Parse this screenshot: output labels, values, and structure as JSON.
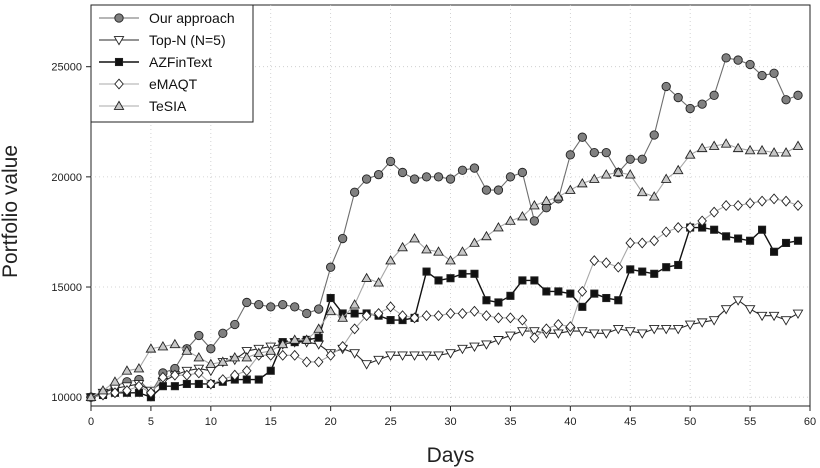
{
  "chart_data": {
    "type": "line",
    "xlabel": "Days",
    "ylabel": "Portfolio value",
    "xlim": [
      0,
      60
    ],
    "ylim": [
      9600,
      27800
    ],
    "xticks": [
      0,
      5,
      10,
      15,
      20,
      25,
      30,
      35,
      40,
      45,
      50,
      55,
      60
    ],
    "yticks": [
      10000,
      15000,
      20000,
      25000
    ],
    "grid": true,
    "legend_position": "top-left",
    "x": [
      0,
      1,
      2,
      3,
      4,
      5,
      6,
      7,
      8,
      9,
      10,
      11,
      12,
      13,
      14,
      15,
      16,
      17,
      18,
      19,
      20,
      21,
      22,
      23,
      24,
      25,
      26,
      27,
      28,
      29,
      30,
      31,
      32,
      33,
      34,
      35,
      36,
      37,
      38,
      39,
      40,
      41,
      42,
      43,
      44,
      45,
      46,
      47,
      48,
      49,
      50,
      51,
      52,
      53,
      54,
      55,
      56,
      57,
      58,
      59
    ],
    "series": [
      {
        "name": "Our approach",
        "marker": "circle",
        "color": "#808080",
        "values": [
          10000,
          10200,
          10500,
          10700,
          10800,
          10200,
          11100,
          11300,
          12200,
          12800,
          12200,
          12900,
          13300,
          14300,
          14200,
          14100,
          14200,
          14100,
          13800,
          14000,
          15900,
          17200,
          19300,
          19900,
          20100,
          20700,
          20200,
          19900,
          20000,
          20000,
          19900,
          20300,
          20400,
          19400,
          19400,
          20000,
          20200,
          18000,
          18600,
          19000,
          21000,
          21800,
          21100,
          21100,
          20200,
          20800,
          20800,
          21900,
          24100,
          23600,
          23100,
          23300,
          23700,
          25400,
          25300,
          25100,
          24600,
          24700,
          23500,
          23700
        ]
      },
      {
        "name": "Top-N (N=5)",
        "marker": "triangle-down",
        "color": "#ffffff",
        "values": [
          10000,
          10200,
          10400,
          10500,
          10600,
          10300,
          10700,
          11000,
          11200,
          11300,
          11200,
          11600,
          11700,
          12100,
          12200,
          12300,
          12400,
          12500,
          12500,
          12400,
          12000,
          12200,
          12000,
          11500,
          11700,
          11900,
          11900,
          11900,
          11900,
          11900,
          12000,
          12200,
          12300,
          12400,
          12600,
          12800,
          13000,
          13000,
          12900,
          12900,
          13000,
          13000,
          12900,
          12900,
          13100,
          13000,
          12900,
          13100,
          13100,
          13100,
          13300,
          13400,
          13500,
          14000,
          14400,
          14000,
          13700,
          13700,
          13500,
          13800
        ]
      },
      {
        "name": "AZFinText",
        "marker": "square",
        "color": "#111111",
        "values": [
          10000,
          10100,
          10200,
          10200,
          10200,
          10000,
          10500,
          10500,
          10600,
          10600,
          10600,
          10700,
          10800,
          10800,
          10800,
          11200,
          12500,
          12500,
          12600,
          12700,
          14500,
          13800,
          13800,
          13800,
          13700,
          13500,
          13500,
          13600,
          15700,
          15300,
          15400,
          15600,
          15600,
          14400,
          14300,
          14600,
          15300,
          15300,
          14800,
          14800,
          14700,
          14100,
          14700,
          14500,
          14400,
          15800,
          15700,
          15600,
          15900,
          16000,
          17700,
          17700,
          17600,
          17300,
          17200,
          17100,
          17600,
          16600,
          17000,
          17100
        ]
      },
      {
        "name": "eMAQT",
        "marker": "diamond",
        "color": "#ffffff",
        "values": [
          10000,
          10100,
          10200,
          10300,
          10500,
          10200,
          10900,
          11000,
          11000,
          11100,
          10600,
          10800,
          11000,
          11200,
          11900,
          11900,
          11900,
          11900,
          11600,
          11600,
          11900,
          12300,
          13100,
          13700,
          13800,
          14100,
          13700,
          13600,
          13700,
          13700,
          13800,
          13800,
          13900,
          13700,
          13600,
          13600,
          13500,
          12700,
          13100,
          13300,
          13200,
          14800,
          16200,
          16100,
          15900,
          17000,
          17000,
          17100,
          17500,
          17700,
          17700,
          18000,
          18400,
          18700,
          18700,
          18800,
          18900,
          19000,
          18900,
          18700
        ]
      },
      {
        "name": "TeSIA",
        "marker": "triangle-up",
        "color": "#c8c8c8",
        "values": [
          10000,
          10300,
          10700,
          11200,
          11300,
          12200,
          12300,
          12400,
          12100,
          11800,
          11500,
          11600,
          11800,
          11800,
          12000,
          12100,
          12400,
          12600,
          12600,
          13100,
          13900,
          13600,
          14200,
          15400,
          15200,
          16200,
          16800,
          17200,
          16700,
          16600,
          16200,
          16600,
          17000,
          17300,
          17700,
          18000,
          18200,
          18700,
          18900,
          19100,
          19400,
          19700,
          19900,
          20100,
          20200,
          20100,
          19300,
          19100,
          19900,
          20300,
          21000,
          21300,
          21400,
          21500,
          21300,
          21200,
          21200,
          21100,
          21100,
          21400
        ]
      }
    ]
  }
}
